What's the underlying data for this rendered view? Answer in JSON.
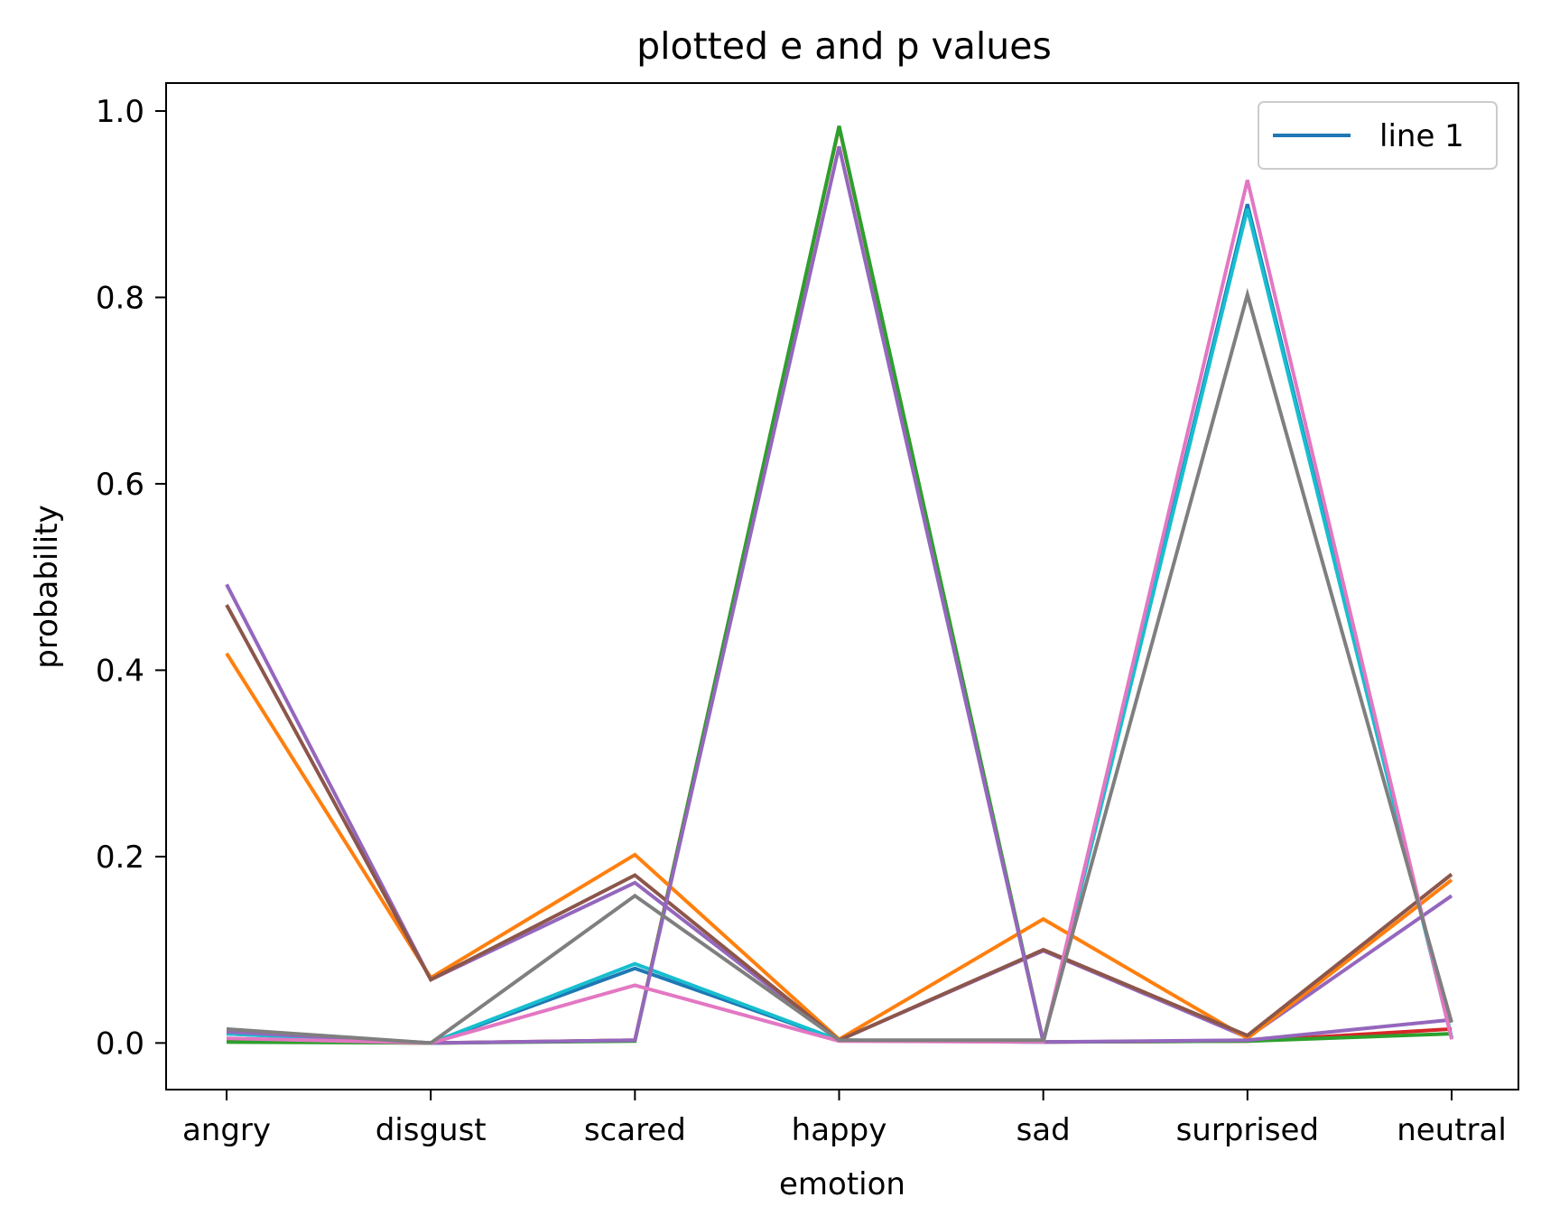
{
  "chart_data": {
    "type": "line",
    "title": "plotted e and p values",
    "xlabel": "emotion",
    "ylabel": "probability",
    "categories": [
      "angry",
      "disgust",
      "scared",
      "happy",
      "sad",
      "surprised",
      "neutral"
    ],
    "ylim": [
      -0.05,
      1.03
    ],
    "yticks": [
      0.0,
      0.2,
      0.4,
      0.6,
      0.8,
      1.0
    ],
    "ytick_labels": [
      "0.0",
      "0.2",
      "0.4",
      "0.6",
      "0.8",
      "1.0"
    ],
    "grid": false,
    "legend": {
      "position": "top-right",
      "entries": [
        {
          "label": "line 1",
          "color": "#1f77b4"
        }
      ]
    },
    "series": [
      {
        "color": "#1f77b4",
        "values": [
          0.01,
          0.0,
          0.08,
          0.003,
          0.001,
          0.9,
          0.005
        ]
      },
      {
        "color": "#17becf",
        "values": [
          0.01,
          0.0,
          0.085,
          0.003,
          0.001,
          0.895,
          0.006
        ]
      },
      {
        "color": "#d62728",
        "values": [
          0.002,
          0.0,
          0.003,
          0.983,
          0.001,
          0.002,
          0.015
        ]
      },
      {
        "color": "#2ca02c",
        "values": [
          0.001,
          0.0,
          0.002,
          0.984,
          0.001,
          0.002,
          0.01
        ]
      },
      {
        "color": "#9467bd",
        "values": [
          0.492,
          0.068,
          0.172,
          0.003,
          0.099,
          0.006,
          0.158
        ]
      },
      {
        "color": "#ff7f0e",
        "values": [
          0.418,
          0.07,
          0.202,
          0.004,
          0.133,
          0.005,
          0.175
        ]
      },
      {
        "color": "#8c564b",
        "values": [
          0.47,
          0.068,
          0.18,
          0.003,
          0.1,
          0.008,
          0.181
        ]
      },
      {
        "color": "#9467bd",
        "values": [
          0.012,
          0.0,
          0.003,
          0.962,
          0.001,
          0.003,
          0.025
        ]
      },
      {
        "color": "#e377c2",
        "values": [
          0.005,
          0.0,
          0.062,
          0.002,
          0.001,
          0.926,
          0.004
        ]
      },
      {
        "color": "#7f7f7f",
        "values": [
          0.015,
          0.0,
          0.158,
          0.003,
          0.003,
          0.803,
          0.022
        ]
      }
    ]
  }
}
